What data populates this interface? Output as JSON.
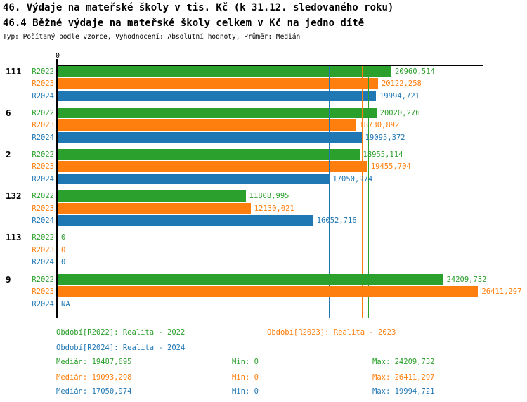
{
  "titles": {
    "line1": "46. Výdaje na mateřské školy v tis. Kč (k 31.12. sledovaného roku)",
    "line2": "46.4 Běžné výdaje na mateřské školy celkem v Kč na jedno dítě",
    "meta": "Typ: Počítaný podle vzorce, Vyhodnocení: Absolutní hodnoty, Průměr: Medián"
  },
  "colors": {
    "R2022": "#2ca02c",
    "R2023": "#ff7f0e",
    "R2024": "#1f77b4",
    "axis": "#000000"
  },
  "chart_data": {
    "type": "bar",
    "orientation": "horizontal",
    "series_names": [
      "R2022",
      "R2023",
      "R2024"
    ],
    "axis": {
      "zero_label": "0",
      "max_hint": 26700
    },
    "grid": false,
    "groups": [
      {
        "label": "111",
        "values": [
          20960.514,
          20122.258,
          19994.721
        ],
        "value_labels": [
          "20960,514",
          "20122,258",
          "19994,721"
        ]
      },
      {
        "label": "6",
        "values": [
          20020.276,
          18730.892,
          19095.372
        ],
        "value_labels": [
          "20020,276",
          "18730,892",
          "19095,372"
        ]
      },
      {
        "label": "2",
        "values": [
          18955.114,
          19455.704,
          17050.974
        ],
        "value_labels": [
          "18955,114",
          "19455,704",
          "17050,974"
        ]
      },
      {
        "label": "132",
        "values": [
          11808.995,
          12130.021,
          16052.716
        ],
        "value_labels": [
          "11808,995",
          "12130,021",
          "16052,716"
        ]
      },
      {
        "label": "113",
        "values": [
          0,
          0,
          0
        ],
        "value_labels": [
          "0",
          "0",
          "0"
        ]
      },
      {
        "label": "9",
        "values": [
          24209.732,
          26411.297,
          null
        ],
        "value_labels": [
          "24209,732",
          "26411,297",
          "NA"
        ],
        "bars_over_lines": true
      }
    ],
    "median_lines": [
      {
        "series": "R2022",
        "value": 19487.695
      },
      {
        "series": "R2023",
        "value": 19093.298
      },
      {
        "series": "R2024",
        "value": 17050.974
      }
    ]
  },
  "legend": {
    "period_r2022": "Období[R2022]: Realita - 2022",
    "period_r2023": "Období[R2023]: Realita - 2023",
    "period_r2024": "Období[R2024]: Realita - 2024",
    "stats": [
      {
        "series": "R2022",
        "median": "Medián: 19487,695",
        "min": "Min: 0",
        "max": "Max: 24209,732"
      },
      {
        "series": "R2023",
        "median": "Medián: 19093,298",
        "min": "Min: 0",
        "max": "Max: 26411,297"
      },
      {
        "series": "R2024",
        "median": "Medián: 17050,974",
        "min": "Min: 0",
        "max": "Max: 19994,721"
      }
    ]
  }
}
